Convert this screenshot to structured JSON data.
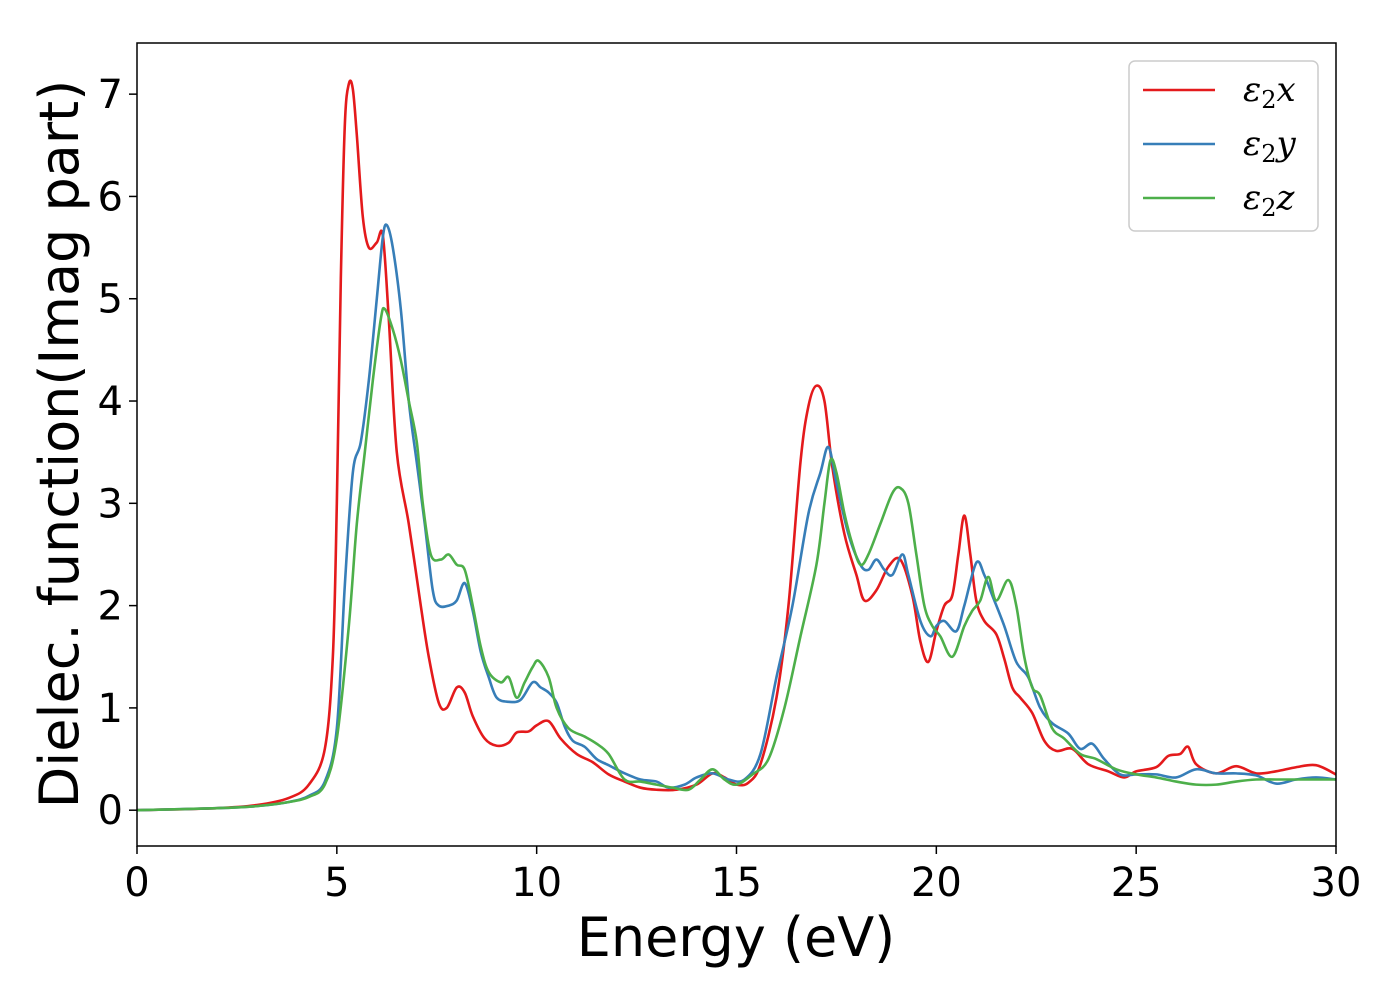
{
  "chart_data": {
    "type": "line",
    "xlabel": "Energy (eV)",
    "ylabel": "Dielec. function(Imag part)",
    "xlim": [
      0,
      30
    ],
    "ylim": [
      -0.35,
      7.5
    ],
    "xticks": [
      0,
      5,
      10,
      15,
      20,
      25,
      30
    ],
    "yticks": [
      0,
      1,
      2,
      3,
      4,
      5,
      6,
      7
    ],
    "grid": false,
    "legend_position": "top-right",
    "series": [
      {
        "name": "x",
        "legend_base": "ε",
        "legend_sub": "2",
        "legend_var": "x",
        "color": "#e41a1c",
        "points": [
          [
            0,
            0.0
          ],
          [
            2,
            0.02
          ],
          [
            3,
            0.05
          ],
          [
            3.8,
            0.12
          ],
          [
            4.3,
            0.25
          ],
          [
            4.7,
            0.6
          ],
          [
            4.9,
            1.5
          ],
          [
            5.0,
            3.0
          ],
          [
            5.1,
            5.2
          ],
          [
            5.2,
            6.7
          ],
          [
            5.3,
            7.1
          ],
          [
            5.4,
            7.05
          ],
          [
            5.5,
            6.6
          ],
          [
            5.65,
            5.8
          ],
          [
            5.8,
            5.5
          ],
          [
            6.0,
            5.55
          ],
          [
            6.15,
            5.62
          ],
          [
            6.3,
            4.8
          ],
          [
            6.5,
            3.5
          ],
          [
            6.8,
            2.8
          ],
          [
            7.1,
            2.0
          ],
          [
            7.3,
            1.5
          ],
          [
            7.55,
            1.05
          ],
          [
            7.75,
            1.0
          ],
          [
            8.0,
            1.2
          ],
          [
            8.2,
            1.15
          ],
          [
            8.4,
            0.92
          ],
          [
            8.7,
            0.7
          ],
          [
            9.0,
            0.63
          ],
          [
            9.3,
            0.66
          ],
          [
            9.5,
            0.76
          ],
          [
            9.8,
            0.77
          ],
          [
            10.0,
            0.83
          ],
          [
            10.3,
            0.87
          ],
          [
            10.6,
            0.7
          ],
          [
            11.0,
            0.55
          ],
          [
            11.4,
            0.47
          ],
          [
            11.8,
            0.35
          ],
          [
            12.2,
            0.28
          ],
          [
            12.6,
            0.22
          ],
          [
            13.0,
            0.2
          ],
          [
            13.5,
            0.2
          ],
          [
            14.0,
            0.25
          ],
          [
            14.4,
            0.36
          ],
          [
            14.7,
            0.32
          ],
          [
            15.0,
            0.25
          ],
          [
            15.3,
            0.27
          ],
          [
            15.6,
            0.45
          ],
          [
            16.0,
            1.1
          ],
          [
            16.3,
            2.0
          ],
          [
            16.6,
            3.4
          ],
          [
            16.8,
            3.95
          ],
          [
            17.0,
            4.15
          ],
          [
            17.2,
            4.0
          ],
          [
            17.4,
            3.35
          ],
          [
            17.7,
            2.7
          ],
          [
            18.0,
            2.3
          ],
          [
            18.2,
            2.05
          ],
          [
            18.5,
            2.15
          ],
          [
            18.8,
            2.38
          ],
          [
            19.1,
            2.45
          ],
          [
            19.4,
            2.1
          ],
          [
            19.6,
            1.65
          ],
          [
            19.8,
            1.45
          ],
          [
            20.0,
            1.75
          ],
          [
            20.2,
            2.0
          ],
          [
            20.4,
            2.1
          ],
          [
            20.55,
            2.5
          ],
          [
            20.7,
            2.88
          ],
          [
            20.85,
            2.5
          ],
          [
            21.0,
            2.05
          ],
          [
            21.2,
            1.85
          ],
          [
            21.5,
            1.72
          ],
          [
            21.7,
            1.48
          ],
          [
            21.9,
            1.2
          ],
          [
            22.1,
            1.1
          ],
          [
            22.4,
            0.95
          ],
          [
            22.7,
            0.68
          ],
          [
            23.0,
            0.58
          ],
          [
            23.4,
            0.6
          ],
          [
            23.8,
            0.45
          ],
          [
            24.3,
            0.38
          ],
          [
            24.7,
            0.32
          ],
          [
            25.0,
            0.38
          ],
          [
            25.5,
            0.42
          ],
          [
            25.8,
            0.53
          ],
          [
            26.1,
            0.55
          ],
          [
            26.3,
            0.62
          ],
          [
            26.5,
            0.45
          ],
          [
            27.0,
            0.36
          ],
          [
            27.5,
            0.43
          ],
          [
            28.0,
            0.36
          ],
          [
            28.5,
            0.38
          ],
          [
            29.0,
            0.42
          ],
          [
            29.5,
            0.44
          ],
          [
            30.0,
            0.35
          ]
        ]
      },
      {
        "name": "y",
        "legend_base": "ε",
        "legend_sub": "2",
        "legend_var": "y",
        "color": "#377eb8",
        "points": [
          [
            0,
            0.0
          ],
          [
            2,
            0.02
          ],
          [
            3,
            0.04
          ],
          [
            3.8,
            0.08
          ],
          [
            4.3,
            0.14
          ],
          [
            4.7,
            0.28
          ],
          [
            5.0,
            0.8
          ],
          [
            5.2,
            2.2
          ],
          [
            5.4,
            3.3
          ],
          [
            5.6,
            3.6
          ],
          [
            5.8,
            4.2
          ],
          [
            6.0,
            5.0
          ],
          [
            6.15,
            5.6
          ],
          [
            6.25,
            5.72
          ],
          [
            6.4,
            5.5
          ],
          [
            6.6,
            4.9
          ],
          [
            6.8,
            4.0
          ],
          [
            7.0,
            3.4
          ],
          [
            7.2,
            2.8
          ],
          [
            7.4,
            2.15
          ],
          [
            7.55,
            2.0
          ],
          [
            7.8,
            2.0
          ],
          [
            8.0,
            2.05
          ],
          [
            8.2,
            2.22
          ],
          [
            8.4,
            1.95
          ],
          [
            8.6,
            1.55
          ],
          [
            8.8,
            1.3
          ],
          [
            9.0,
            1.1
          ],
          [
            9.3,
            1.06
          ],
          [
            9.6,
            1.08
          ],
          [
            9.9,
            1.25
          ],
          [
            10.1,
            1.2
          ],
          [
            10.3,
            1.15
          ],
          [
            10.5,
            1.05
          ],
          [
            10.7,
            0.82
          ],
          [
            10.9,
            0.68
          ],
          [
            11.2,
            0.62
          ],
          [
            11.5,
            0.5
          ],
          [
            11.8,
            0.44
          ],
          [
            12.2,
            0.36
          ],
          [
            12.6,
            0.3
          ],
          [
            13.0,
            0.28
          ],
          [
            13.3,
            0.22
          ],
          [
            13.7,
            0.25
          ],
          [
            14.0,
            0.32
          ],
          [
            14.4,
            0.36
          ],
          [
            14.8,
            0.3
          ],
          [
            15.2,
            0.3
          ],
          [
            15.6,
            0.55
          ],
          [
            16.0,
            1.3
          ],
          [
            16.4,
            2.0
          ],
          [
            16.8,
            2.9
          ],
          [
            17.1,
            3.3
          ],
          [
            17.3,
            3.55
          ],
          [
            17.5,
            3.2
          ],
          [
            17.8,
            2.7
          ],
          [
            18.1,
            2.4
          ],
          [
            18.3,
            2.35
          ],
          [
            18.5,
            2.45
          ],
          [
            18.7,
            2.35
          ],
          [
            18.9,
            2.3
          ],
          [
            19.15,
            2.5
          ],
          [
            19.3,
            2.3
          ],
          [
            19.6,
            1.85
          ],
          [
            19.85,
            1.7
          ],
          [
            20.0,
            1.8
          ],
          [
            20.2,
            1.85
          ],
          [
            20.5,
            1.75
          ],
          [
            20.7,
            2.0
          ],
          [
            21.0,
            2.42
          ],
          [
            21.2,
            2.3
          ],
          [
            21.4,
            2.1
          ],
          [
            21.7,
            1.8
          ],
          [
            22.0,
            1.45
          ],
          [
            22.3,
            1.3
          ],
          [
            22.6,
            1.0
          ],
          [
            22.9,
            0.85
          ],
          [
            23.3,
            0.75
          ],
          [
            23.6,
            0.6
          ],
          [
            23.9,
            0.65
          ],
          [
            24.2,
            0.5
          ],
          [
            24.6,
            0.35
          ],
          [
            25.0,
            0.35
          ],
          [
            25.5,
            0.35
          ],
          [
            26.0,
            0.32
          ],
          [
            26.5,
            0.4
          ],
          [
            27.0,
            0.36
          ],
          [
            27.5,
            0.36
          ],
          [
            28.0,
            0.34
          ],
          [
            28.5,
            0.26
          ],
          [
            29.0,
            0.3
          ],
          [
            29.5,
            0.32
          ],
          [
            30.0,
            0.3
          ]
        ]
      },
      {
        "name": "z",
        "legend_base": "ε",
        "legend_sub": "2",
        "legend_var": "z",
        "color": "#4daf4a",
        "points": [
          [
            0,
            0.0
          ],
          [
            2,
            0.02
          ],
          [
            3,
            0.04
          ],
          [
            3.8,
            0.08
          ],
          [
            4.3,
            0.13
          ],
          [
            4.7,
            0.25
          ],
          [
            5.0,
            0.7
          ],
          [
            5.3,
            1.8
          ],
          [
            5.5,
            2.8
          ],
          [
            5.7,
            3.5
          ],
          [
            5.9,
            4.2
          ],
          [
            6.1,
            4.8
          ],
          [
            6.2,
            4.9
          ],
          [
            6.4,
            4.7
          ],
          [
            6.6,
            4.4
          ],
          [
            6.8,
            4.0
          ],
          [
            7.0,
            3.6
          ],
          [
            7.15,
            3.0
          ],
          [
            7.35,
            2.5
          ],
          [
            7.6,
            2.45
          ],
          [
            7.8,
            2.5
          ],
          [
            8.0,
            2.4
          ],
          [
            8.2,
            2.35
          ],
          [
            8.4,
            2.0
          ],
          [
            8.6,
            1.6
          ],
          [
            8.8,
            1.35
          ],
          [
            9.1,
            1.25
          ],
          [
            9.3,
            1.3
          ],
          [
            9.5,
            1.1
          ],
          [
            9.7,
            1.25
          ],
          [
            9.9,
            1.4
          ],
          [
            10.05,
            1.46
          ],
          [
            10.3,
            1.3
          ],
          [
            10.5,
            1.0
          ],
          [
            10.8,
            0.8
          ],
          [
            11.2,
            0.72
          ],
          [
            11.5,
            0.65
          ],
          [
            11.8,
            0.55
          ],
          [
            12.2,
            0.3
          ],
          [
            12.6,
            0.28
          ],
          [
            13.0,
            0.25
          ],
          [
            13.4,
            0.22
          ],
          [
            13.8,
            0.2
          ],
          [
            14.1,
            0.3
          ],
          [
            14.4,
            0.4
          ],
          [
            14.7,
            0.3
          ],
          [
            15.0,
            0.25
          ],
          [
            15.4,
            0.35
          ],
          [
            15.8,
            0.5
          ],
          [
            16.2,
            1.0
          ],
          [
            16.6,
            1.7
          ],
          [
            17.0,
            2.4
          ],
          [
            17.2,
            3.0
          ],
          [
            17.35,
            3.42
          ],
          [
            17.5,
            3.3
          ],
          [
            17.7,
            2.9
          ],
          [
            17.9,
            2.6
          ],
          [
            18.1,
            2.4
          ],
          [
            18.3,
            2.5
          ],
          [
            18.6,
            2.8
          ],
          [
            18.9,
            3.1
          ],
          [
            19.1,
            3.15
          ],
          [
            19.3,
            3.0
          ],
          [
            19.5,
            2.5
          ],
          [
            19.7,
            2.0
          ],
          [
            19.9,
            1.8
          ],
          [
            20.1,
            1.7
          ],
          [
            20.4,
            1.5
          ],
          [
            20.7,
            1.8
          ],
          [
            20.9,
            1.95
          ],
          [
            21.1,
            2.05
          ],
          [
            21.3,
            2.28
          ],
          [
            21.5,
            2.05
          ],
          [
            21.8,
            2.25
          ],
          [
            22.0,
            2.0
          ],
          [
            22.2,
            1.5
          ],
          [
            22.4,
            1.2
          ],
          [
            22.6,
            1.12
          ],
          [
            22.9,
            0.8
          ],
          [
            23.2,
            0.7
          ],
          [
            23.6,
            0.55
          ],
          [
            24.0,
            0.5
          ],
          [
            24.5,
            0.4
          ],
          [
            25.0,
            0.35
          ],
          [
            25.5,
            0.32
          ],
          [
            26.0,
            0.28
          ],
          [
            26.5,
            0.25
          ],
          [
            27.0,
            0.25
          ],
          [
            27.5,
            0.28
          ],
          [
            28.0,
            0.3
          ],
          [
            28.5,
            0.3
          ],
          [
            29.0,
            0.3
          ],
          [
            29.5,
            0.3
          ],
          [
            30.0,
            0.3
          ]
        ]
      }
    ]
  }
}
